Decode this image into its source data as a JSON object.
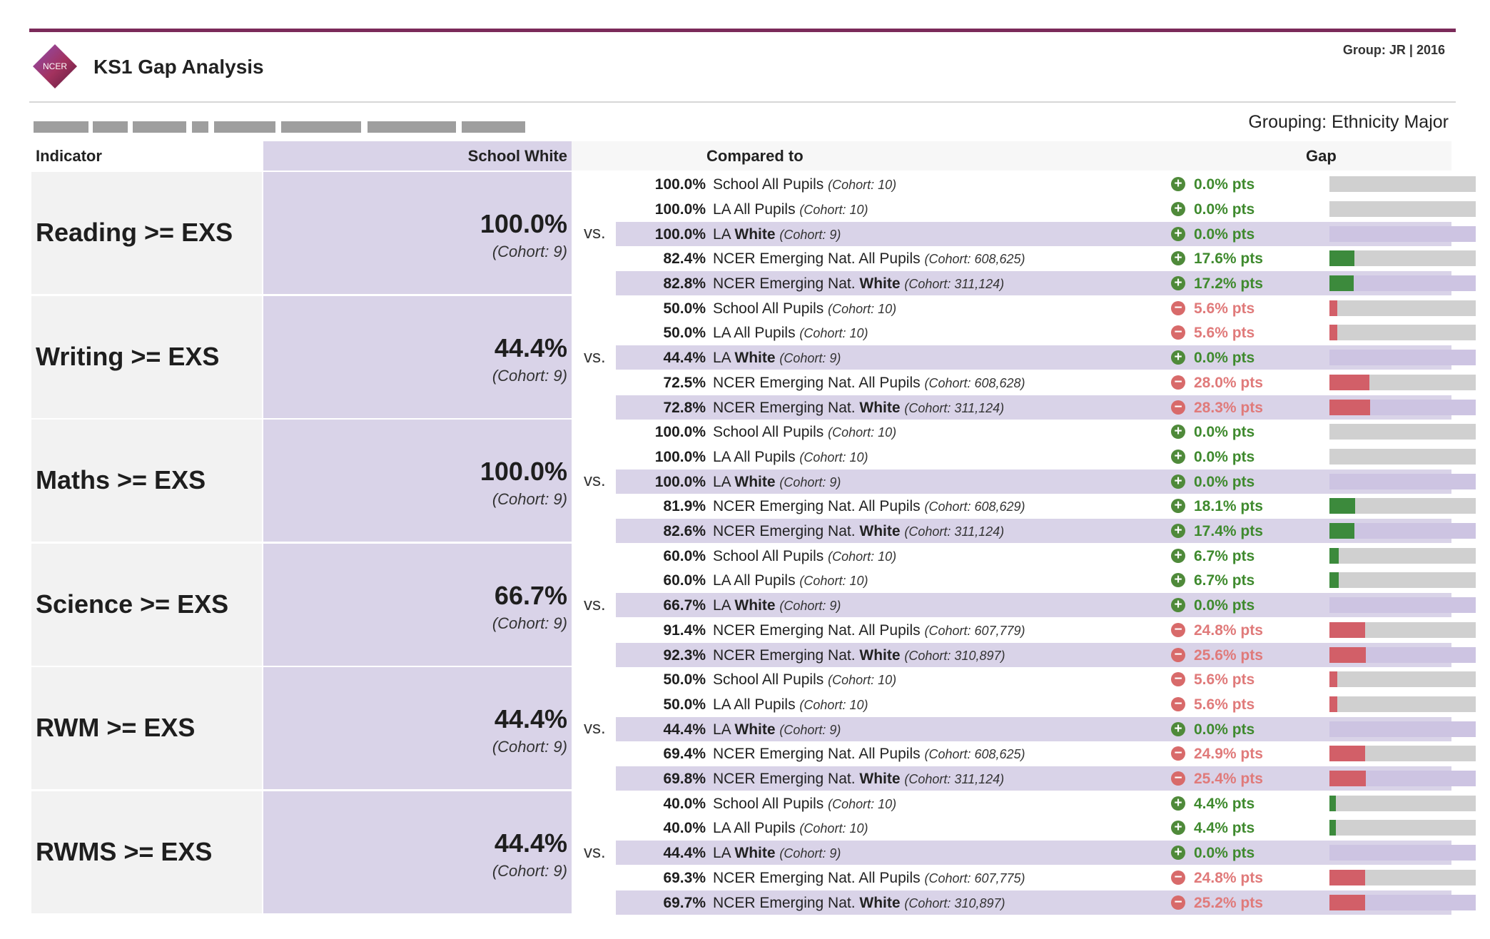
{
  "header": {
    "logo_text": "NCER",
    "title": "KS1 Gap Analysis",
    "group_label": "Group: JR  |  2016",
    "grouping": "Grouping: Ethnicity Major"
  },
  "colors": {
    "brand": "#7b2a5a",
    "positive": "#3c8a3c",
    "negative": "#d25f68",
    "highlight": "#d9d3e8"
  },
  "table": {
    "headers": {
      "indicator": "Indicator",
      "school": "School White",
      "compared": "Compared to",
      "gap": "Gap"
    },
    "vs_label": "vs.",
    "groups": [
      {
        "indicator": "Reading >= EXS",
        "school_pct": "100.0%",
        "school_cohort": "(Cohort: 9)",
        "rows": [
          {
            "value": "100.0%",
            "pre": "School All Pupils",
            "bold": "",
            "cohort": "(Cohort: 10)",
            "gap": "0.0% pts",
            "sign": "pos",
            "gap_value": 0.0
          },
          {
            "value": "100.0%",
            "pre": "LA All Pupils",
            "bold": "",
            "cohort": "(Cohort: 10)",
            "gap": "0.0% pts",
            "sign": "pos",
            "gap_value": 0.0
          },
          {
            "value": "100.0%",
            "pre": "LA",
            "bold": "White",
            "cohort": "(Cohort: 9)",
            "gap": "0.0% pts",
            "sign": "pos",
            "gap_value": 0.0
          },
          {
            "value": "82.4%",
            "pre": "NCER Emerging Nat. All Pupils",
            "bold": "",
            "cohort": "(Cohort: 608,625)",
            "gap": "17.6% pts",
            "sign": "pos",
            "gap_value": 17.6
          },
          {
            "value": "82.8%",
            "pre": "NCER Emerging Nat.",
            "bold": "White",
            "cohort": "(Cohort: 311,124)",
            "gap": "17.2% pts",
            "sign": "pos",
            "gap_value": 17.2
          }
        ]
      },
      {
        "indicator": "Writing >= EXS",
        "school_pct": "44.4%",
        "school_cohort": "(Cohort: 9)",
        "rows": [
          {
            "value": "50.0%",
            "pre": "School All Pupils",
            "bold": "",
            "cohort": "(Cohort: 10)",
            "gap": "5.6% pts",
            "sign": "neg",
            "gap_value": 5.6
          },
          {
            "value": "50.0%",
            "pre": "LA All Pupils",
            "bold": "",
            "cohort": "(Cohort: 10)",
            "gap": "5.6% pts",
            "sign": "neg",
            "gap_value": 5.6
          },
          {
            "value": "44.4%",
            "pre": "LA",
            "bold": "White",
            "cohort": "(Cohort: 9)",
            "gap": "0.0% pts",
            "sign": "pos",
            "gap_value": 0.0
          },
          {
            "value": "72.5%",
            "pre": "NCER Emerging Nat. All Pupils",
            "bold": "",
            "cohort": "(Cohort: 608,628)",
            "gap": "28.0% pts",
            "sign": "neg",
            "gap_value": 28.0
          },
          {
            "value": "72.8%",
            "pre": "NCER Emerging Nat.",
            "bold": "White",
            "cohort": "(Cohort: 311,124)",
            "gap": "28.3% pts",
            "sign": "neg",
            "gap_value": 28.3
          }
        ]
      },
      {
        "indicator": "Maths >= EXS",
        "school_pct": "100.0%",
        "school_cohort": "(Cohort: 9)",
        "rows": [
          {
            "value": "100.0%",
            "pre": "School All Pupils",
            "bold": "",
            "cohort": "(Cohort: 10)",
            "gap": "0.0% pts",
            "sign": "pos",
            "gap_value": 0.0
          },
          {
            "value": "100.0%",
            "pre": "LA All Pupils",
            "bold": "",
            "cohort": "(Cohort: 10)",
            "gap": "0.0% pts",
            "sign": "pos",
            "gap_value": 0.0
          },
          {
            "value": "100.0%",
            "pre": "LA",
            "bold": "White",
            "cohort": "(Cohort: 9)",
            "gap": "0.0% pts",
            "sign": "pos",
            "gap_value": 0.0
          },
          {
            "value": "81.9%",
            "pre": "NCER Emerging Nat. All Pupils",
            "bold": "",
            "cohort": "(Cohort: 608,629)",
            "gap": "18.1% pts",
            "sign": "pos",
            "gap_value": 18.1
          },
          {
            "value": "82.6%",
            "pre": "NCER Emerging Nat.",
            "bold": "White",
            "cohort": "(Cohort: 311,124)",
            "gap": "17.4% pts",
            "sign": "pos",
            "gap_value": 17.4
          }
        ]
      },
      {
        "indicator": "Science >= EXS",
        "school_pct": "66.7%",
        "school_cohort": "(Cohort: 9)",
        "rows": [
          {
            "value": "60.0%",
            "pre": "School All Pupils",
            "bold": "",
            "cohort": "(Cohort: 10)",
            "gap": "6.7% pts",
            "sign": "pos",
            "gap_value": 6.7
          },
          {
            "value": "60.0%",
            "pre": "LA All Pupils",
            "bold": "",
            "cohort": "(Cohort: 10)",
            "gap": "6.7% pts",
            "sign": "pos",
            "gap_value": 6.7
          },
          {
            "value": "66.7%",
            "pre": "LA",
            "bold": "White",
            "cohort": "(Cohort: 9)",
            "gap": "0.0% pts",
            "sign": "pos",
            "gap_value": 0.0
          },
          {
            "value": "91.4%",
            "pre": "NCER Emerging Nat. All Pupils",
            "bold": "",
            "cohort": "(Cohort: 607,779)",
            "gap": "24.8% pts",
            "sign": "neg",
            "gap_value": 24.8
          },
          {
            "value": "92.3%",
            "pre": "NCER Emerging Nat.",
            "bold": "White",
            "cohort": "(Cohort: 310,897)",
            "gap": "25.6% pts",
            "sign": "neg",
            "gap_value": 25.6
          }
        ]
      },
      {
        "indicator": "RWM >= EXS",
        "school_pct": "44.4%",
        "school_cohort": "(Cohort: 9)",
        "rows": [
          {
            "value": "50.0%",
            "pre": "School All Pupils",
            "bold": "",
            "cohort": "(Cohort: 10)",
            "gap": "5.6% pts",
            "sign": "neg",
            "gap_value": 5.6
          },
          {
            "value": "50.0%",
            "pre": "LA All Pupils",
            "bold": "",
            "cohort": "(Cohort: 10)",
            "gap": "5.6% pts",
            "sign": "neg",
            "gap_value": 5.6
          },
          {
            "value": "44.4%",
            "pre": "LA",
            "bold": "White",
            "cohort": "(Cohort: 9)",
            "gap": "0.0% pts",
            "sign": "pos",
            "gap_value": 0.0
          },
          {
            "value": "69.4%",
            "pre": "NCER Emerging Nat. All Pupils",
            "bold": "",
            "cohort": "(Cohort: 608,625)",
            "gap": "24.9% pts",
            "sign": "neg",
            "gap_value": 24.9
          },
          {
            "value": "69.8%",
            "pre": "NCER Emerging Nat.",
            "bold": "White",
            "cohort": "(Cohort: 311,124)",
            "gap": "25.4% pts",
            "sign": "neg",
            "gap_value": 25.4
          }
        ]
      },
      {
        "indicator": "RWMS >= EXS",
        "school_pct": "44.4%",
        "school_cohort": "(Cohort: 9)",
        "rows": [
          {
            "value": "40.0%",
            "pre": "School All Pupils",
            "bold": "",
            "cohort": "(Cohort: 10)",
            "gap": "4.4% pts",
            "sign": "pos",
            "gap_value": 4.4
          },
          {
            "value": "40.0%",
            "pre": "LA All Pupils",
            "bold": "",
            "cohort": "(Cohort: 10)",
            "gap": "4.4% pts",
            "sign": "pos",
            "gap_value": 4.4
          },
          {
            "value": "44.4%",
            "pre": "LA",
            "bold": "White",
            "cohort": "(Cohort: 9)",
            "gap": "0.0% pts",
            "sign": "pos",
            "gap_value": 0.0
          },
          {
            "value": "69.3%",
            "pre": "NCER Emerging Nat. All Pupils",
            "bold": "",
            "cohort": "(Cohort: 607,775)",
            "gap": "24.8% pts",
            "sign": "neg",
            "gap_value": 24.8
          },
          {
            "value": "69.7%",
            "pre": "NCER Emerging Nat.",
            "bold": "White",
            "cohort": "(Cohort: 310,897)",
            "gap": "25.2% pts",
            "sign": "neg",
            "gap_value": 25.2
          }
        ]
      }
    ]
  }
}
